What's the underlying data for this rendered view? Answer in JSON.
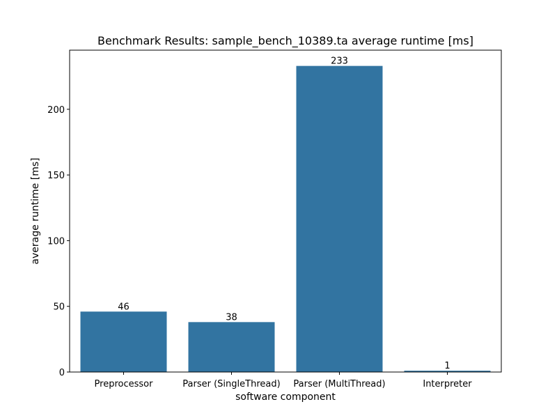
{
  "chart_data": {
    "type": "bar",
    "title": "Benchmark Results: sample_bench_10389.ta average runtime [ms]",
    "xlabel": "software component",
    "ylabel": "average runtime [ms]",
    "categories": [
      "Preprocessor",
      "Parser (SingleThread)",
      "Parser (MultiThread)",
      "Interpreter"
    ],
    "values": [
      46,
      38,
      233,
      1
    ],
    "data_labels": [
      "46",
      "38",
      "233",
      "1"
    ],
    "yticks": [
      0,
      50,
      100,
      150,
      200
    ],
    "ylim": [
      0,
      245
    ],
    "grid": false,
    "legend": "none",
    "bar_color": "#3274a1"
  }
}
